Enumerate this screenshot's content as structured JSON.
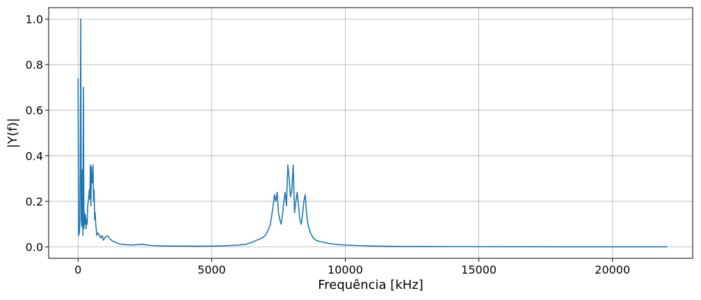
{
  "chart_data": {
    "type": "line",
    "title": "",
    "xlabel": "Frequência [kHz]",
    "ylabel": "|Y(f)|",
    "xlim": [
      -1100,
      23000
    ],
    "ylim": [
      -0.05,
      1.05
    ],
    "xticks": [
      0,
      5000,
      10000,
      15000,
      20000
    ],
    "yticks": [
      0.0,
      0.2,
      0.4,
      0.6,
      0.8,
      1.0
    ],
    "xtick_labels": [
      "0",
      "5000",
      "10000",
      "15000",
      "20000"
    ],
    "ytick_labels": [
      "0.0",
      "0.2",
      "0.4",
      "0.6",
      "0.8",
      "1.0"
    ],
    "grid": true,
    "line_color": "#1f77b4",
    "series": [
      {
        "x": [
          0,
          20,
          40,
          60,
          80,
          100,
          120,
          140,
          160,
          180,
          200,
          220,
          240,
          260,
          280,
          300,
          320,
          340,
          360,
          380,
          400,
          420,
          440,
          460,
          480,
          500,
          520,
          540,
          560,
          580,
          600,
          620,
          640,
          660,
          680,
          700,
          720,
          760,
          800,
          850,
          900,
          950,
          1000,
          1100,
          1200,
          1300,
          1400,
          1500,
          1600,
          1800,
          2000,
          2200,
          2400,
          2600,
          2800,
          3000,
          3500,
          4000,
          4500,
          5000,
          5500,
          6000,
          6300,
          6500,
          6700,
          6900,
          7000,
          7100,
          7200,
          7300,
          7350,
          7400,
          7450,
          7500,
          7550,
          7600,
          7650,
          7700,
          7750,
          7800,
          7850,
          7900,
          7950,
          8000,
          8050,
          8100,
          8150,
          8200,
          8250,
          8300,
          8350,
          8400,
          8450,
          8500,
          8550,
          8600,
          8650,
          8700,
          8800,
          8900,
          9000,
          9200,
          9400,
          9600,
          9800,
          10000,
          10500,
          11000,
          11500,
          12000,
          13000,
          14000,
          15000,
          16000,
          17000,
          18000,
          19000,
          20000,
          21000,
          22050
        ],
        "y": [
          0.74,
          0.05,
          0.06,
          0.08,
          0.35,
          1.0,
          0.12,
          0.09,
          0.34,
          0.05,
          0.7,
          0.08,
          0.15,
          0.1,
          0.14,
          0.08,
          0.12,
          0.1,
          0.18,
          0.2,
          0.22,
          0.25,
          0.21,
          0.36,
          0.18,
          0.35,
          0.28,
          0.29,
          0.36,
          0.2,
          0.25,
          0.12,
          0.15,
          0.1,
          0.08,
          0.05,
          0.06,
          0.06,
          0.05,
          0.04,
          0.05,
          0.03,
          0.04,
          0.05,
          0.035,
          0.025,
          0.02,
          0.015,
          0.012,
          0.01,
          0.008,
          0.01,
          0.012,
          0.008,
          0.006,
          0.005,
          0.004,
          0.004,
          0.003,
          0.004,
          0.005,
          0.008,
          0.012,
          0.02,
          0.03,
          0.04,
          0.05,
          0.07,
          0.1,
          0.18,
          0.23,
          0.2,
          0.24,
          0.15,
          0.12,
          0.1,
          0.14,
          0.2,
          0.24,
          0.18,
          0.36,
          0.3,
          0.22,
          0.25,
          0.36,
          0.15,
          0.2,
          0.24,
          0.18,
          0.12,
          0.1,
          0.14,
          0.2,
          0.23,
          0.15,
          0.1,
          0.08,
          0.06,
          0.04,
          0.03,
          0.025,
          0.02,
          0.015,
          0.012,
          0.01,
          0.008,
          0.006,
          0.004,
          0.003,
          0.002,
          0.0015,
          0.001,
          0.001,
          0.0008,
          0.0008,
          0.0006,
          0.0006,
          0.0005,
          0.0005,
          0.0004
        ]
      }
    ]
  }
}
